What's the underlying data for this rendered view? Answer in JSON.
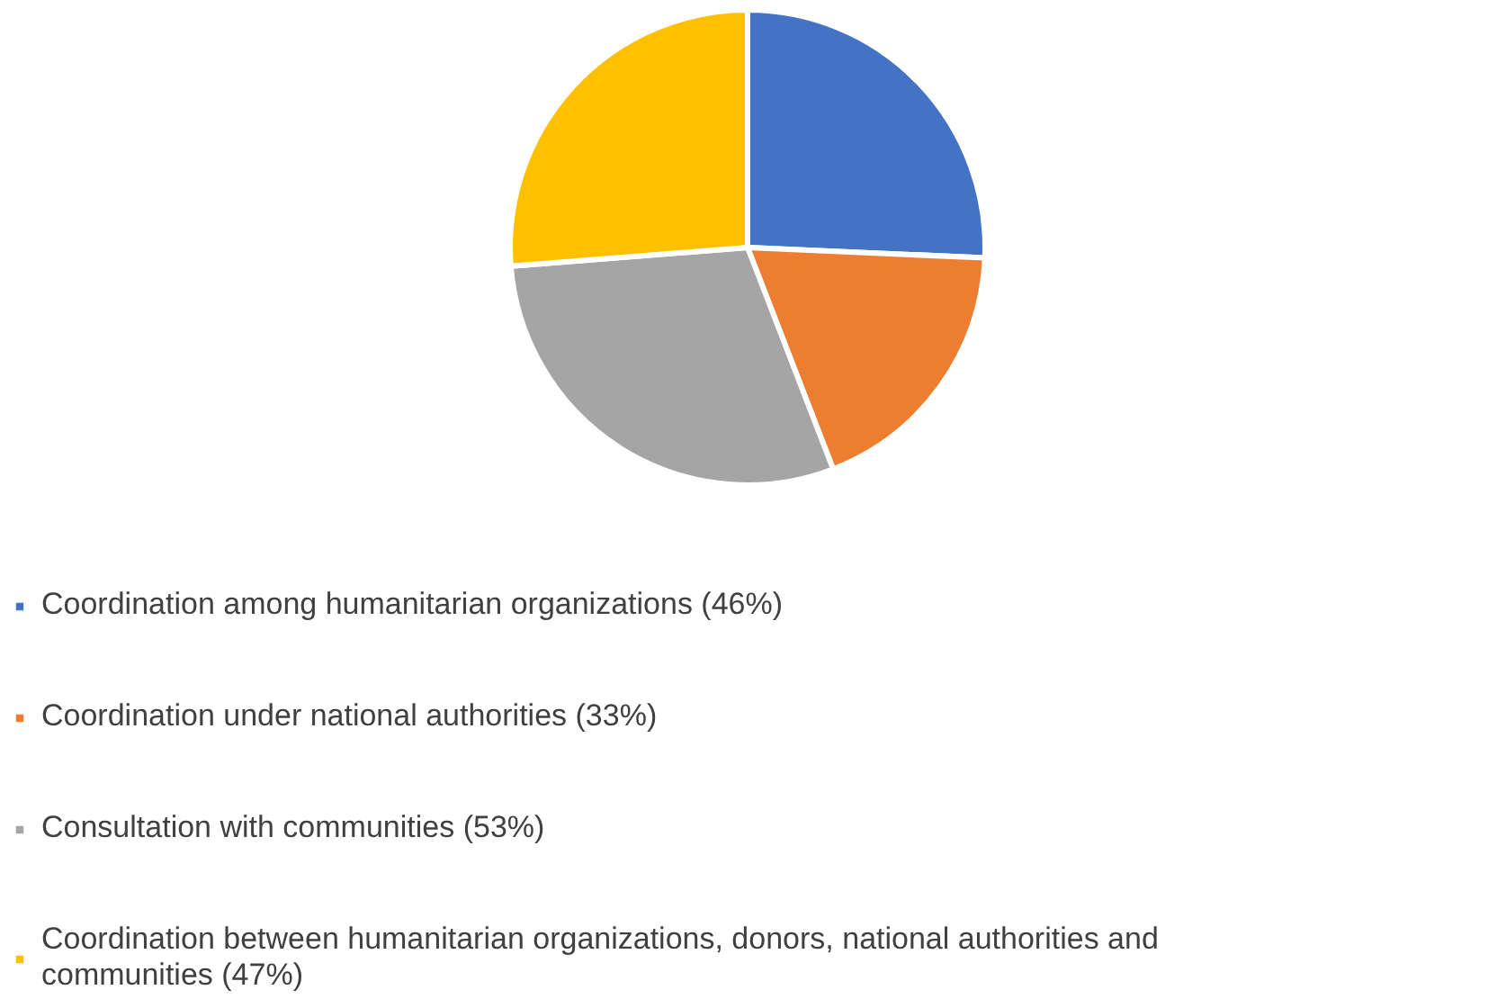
{
  "chart_data": {
    "type": "pie",
    "categories": [
      "Coordination among humanitarian organizations (46%)",
      "Coordination under national authorities (33%)",
      "Consultation with communities (53%)",
      "Coordination between humanitarian organizations, donors, national authorities and communities (47%)"
    ],
    "values": [
      46,
      33,
      53,
      47
    ],
    "colors": [
      "#4472c4",
      "#ed7d31",
      "#a5a5a5",
      "#ffc000"
    ],
    "legend": "bottom"
  }
}
